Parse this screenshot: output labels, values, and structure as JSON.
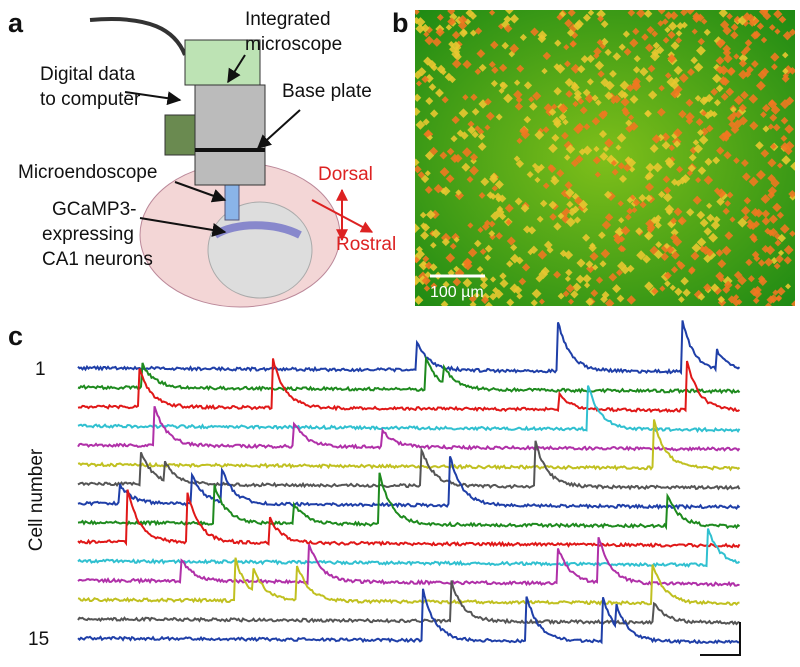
{
  "panel_a": {
    "label": "a",
    "integrated_microscope": [
      "Integrated",
      "microscope"
    ],
    "digital_data": [
      "Digital data",
      "to computer"
    ],
    "base_plate": "Base plate",
    "microendoscope": "Microendoscope",
    "neurons": [
      "GCaMP3-",
      "expressing",
      "CA1 neurons"
    ],
    "dorsal": "Dorsal",
    "rostral": "Rostral"
  },
  "panel_b": {
    "label": "b",
    "scale_bar": "100 µm"
  },
  "panel_c": {
    "label": "c",
    "y_label": "Cell number",
    "first_cell": "1",
    "last_cell": "15"
  }
}
